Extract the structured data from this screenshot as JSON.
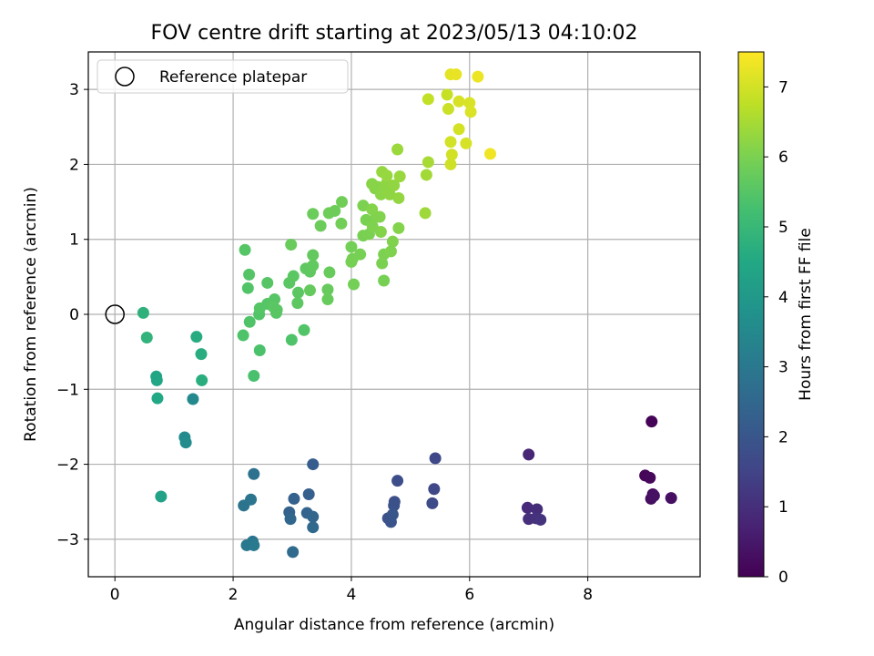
{
  "chart_data": {
    "type": "scatter",
    "title": "FOV centre drift starting at 2023/05/13 04:10:02",
    "xlabel": "Angular distance from reference (arcmin)",
    "ylabel": "Rotation from reference (arcmin)",
    "xlim": [
      -0.45,
      9.9
    ],
    "ylim": [
      -3.5,
      3.5
    ],
    "xticks": [
      0,
      2,
      4,
      6,
      8
    ],
    "yticks": [
      -3,
      -2,
      -1,
      0,
      1,
      2,
      3
    ],
    "grid": true,
    "legend": {
      "placement": "top-left",
      "entries": [
        "Reference platepar"
      ]
    },
    "reference_point": {
      "x": 0,
      "y": 0
    },
    "colorbar": {
      "label": "Hours from first FF file",
      "range": [
        0,
        7.5
      ],
      "ticks": [
        0,
        1,
        2,
        3,
        4,
        5,
        6,
        7
      ],
      "colormap": "viridis"
    },
    "points": [
      [
        9.08,
        -1.43,
        0.05
      ],
      [
        8.97,
        -2.15,
        0.1
      ],
      [
        9.05,
        -2.18,
        0.15
      ],
      [
        9.1,
        -2.4,
        0.2
      ],
      [
        9.07,
        -2.46,
        0.25
      ],
      [
        9.41,
        -2.45,
        0.3
      ],
      [
        9.12,
        -2.42,
        0.35
      ],
      [
        7.0,
        -1.87,
        0.8
      ],
      [
        6.98,
        -2.58,
        0.9
      ],
      [
        7.14,
        -2.6,
        0.95
      ],
      [
        7.0,
        -2.73,
        1.0
      ],
      [
        7.12,
        -2.72,
        1.05
      ],
      [
        7.2,
        -2.74,
        1.1
      ],
      [
        5.42,
        -1.92,
        1.6
      ],
      [
        5.4,
        -2.33,
        1.65
      ],
      [
        5.37,
        -2.52,
        1.7
      ],
      [
        4.78,
        -2.22,
        1.75
      ],
      [
        4.73,
        -2.5,
        1.8
      ],
      [
        4.72,
        -2.55,
        1.85
      ],
      [
        4.62,
        -2.72,
        1.9
      ],
      [
        4.67,
        -2.77,
        1.95
      ],
      [
        4.7,
        -2.67,
        2.0
      ],
      [
        3.35,
        -2.0,
        2.2
      ],
      [
        3.28,
        -2.4,
        2.25
      ],
      [
        3.03,
        -2.46,
        2.3
      ],
      [
        2.95,
        -2.64,
        2.35
      ],
      [
        3.25,
        -2.65,
        2.4
      ],
      [
        3.35,
        -2.7,
        2.45
      ],
      [
        2.97,
        -2.73,
        2.5
      ],
      [
        3.35,
        -2.84,
        2.55
      ],
      [
        3.01,
        -3.17,
        2.6
      ],
      [
        2.35,
        -2.13,
        2.8
      ],
      [
        2.18,
        -2.55,
        2.85
      ],
      [
        2.3,
        -2.47,
        2.9
      ],
      [
        2.33,
        -3.03,
        2.95
      ],
      [
        2.23,
        -3.08,
        3.0
      ],
      [
        2.35,
        -3.08,
        3.05
      ],
      [
        1.32,
        -1.13,
        3.5
      ],
      [
        1.18,
        -1.64,
        3.55
      ],
      [
        1.2,
        -1.71,
        3.6
      ],
      [
        0.78,
        -2.43,
        4.3
      ],
      [
        0.7,
        -0.83,
        4.4
      ],
      [
        0.71,
        -0.88,
        4.45
      ],
      [
        0.72,
        -1.12,
        4.5
      ],
      [
        1.38,
        -0.3,
        4.6
      ],
      [
        1.46,
        -0.53,
        4.65
      ],
      [
        1.47,
        -0.88,
        4.7
      ],
      [
        0.48,
        0.02,
        4.8
      ],
      [
        0.54,
        -0.31,
        4.85
      ],
      [
        2.35,
        -0.82,
        5.3
      ],
      [
        2.45,
        -0.48,
        5.35
      ],
      [
        2.17,
        -0.28,
        5.4
      ],
      [
        2.28,
        -0.1,
        5.42
      ],
      [
        2.44,
        0.0,
        5.45
      ],
      [
        2.45,
        0.08,
        5.48
      ],
      [
        2.58,
        0.14,
        5.5
      ],
      [
        2.7,
        0.2,
        5.52
      ],
      [
        2.73,
        0.02,
        5.54
      ],
      [
        2.68,
        0.1,
        5.55
      ],
      [
        2.74,
        0.06,
        5.56
      ],
      [
        2.25,
        0.35,
        5.45
      ],
      [
        2.27,
        0.53,
        5.47
      ],
      [
        2.2,
        0.86,
        5.5
      ],
      [
        2.58,
        0.42,
        5.52
      ],
      [
        2.95,
        0.42,
        5.55
      ],
      [
        3.02,
        0.51,
        5.57
      ],
      [
        3.1,
        0.29,
        5.58
      ],
      [
        3.09,
        0.15,
        5.6
      ],
      [
        3.23,
        0.61,
        5.62
      ],
      [
        3.3,
        0.57,
        5.64
      ],
      [
        3.35,
        0.65,
        5.66
      ],
      [
        3.35,
        0.79,
        5.68
      ],
      [
        3.3,
        0.32,
        5.7
      ],
      [
        3.6,
        0.33,
        5.72
      ],
      [
        3.6,
        0.2,
        5.73
      ],
      [
        3.63,
        0.56,
        5.74
      ],
      [
        2.99,
        -0.34,
        5.4
      ],
      [
        3.2,
        -0.21,
        5.45
      ],
      [
        2.98,
        0.93,
        5.75
      ],
      [
        3.35,
        1.34,
        5.78
      ],
      [
        3.48,
        1.18,
        5.8
      ],
      [
        3.62,
        1.35,
        5.82
      ],
      [
        3.72,
        1.38,
        5.84
      ],
      [
        3.84,
        1.5,
        5.86
      ],
      [
        3.83,
        1.21,
        5.88
      ],
      [
        4.0,
        0.9,
        5.9
      ],
      [
        4.02,
        0.74,
        5.92
      ],
      [
        4.0,
        0.7,
        5.94
      ],
      [
        4.04,
        0.4,
        5.9
      ],
      [
        4.15,
        0.8,
        5.95
      ],
      [
        4.2,
        1.05,
        5.97
      ],
      [
        4.25,
        1.26,
        5.99
      ],
      [
        4.3,
        1.07,
        6.0
      ],
      [
        4.2,
        1.45,
        6.02
      ],
      [
        4.36,
        1.17,
        6.04
      ],
      [
        4.42,
        1.3,
        6.06
      ],
      [
        4.48,
        1.3,
        6.08
      ],
      [
        4.5,
        1.1,
        6.1
      ],
      [
        4.52,
        0.68,
        6.0
      ],
      [
        4.55,
        0.8,
        6.02
      ],
      [
        4.55,
        0.45,
        5.95
      ],
      [
        4.67,
        0.84,
        6.05
      ],
      [
        4.7,
        0.97,
        6.07
      ],
      [
        4.8,
        1.15,
        6.1
      ],
      [
        4.35,
        1.4,
        6.1
      ],
      [
        4.4,
        1.68,
        6.12
      ],
      [
        4.35,
        1.74,
        6.14
      ],
      [
        4.45,
        1.7,
        6.16
      ],
      [
        4.5,
        1.6,
        6.18
      ],
      [
        4.55,
        1.65,
        6.2
      ],
      [
        4.6,
        1.75,
        6.22
      ],
      [
        4.65,
        1.6,
        6.24
      ],
      [
        4.72,
        1.72,
        6.26
      ],
      [
        4.8,
        1.55,
        6.28
      ],
      [
        4.52,
        1.9,
        6.3
      ],
      [
        4.6,
        1.85,
        6.32
      ],
      [
        4.82,
        1.84,
        6.34
      ],
      [
        4.78,
        2.2,
        6.36
      ],
      [
        5.25,
        1.35,
        6.4
      ],
      [
        5.27,
        1.86,
        6.45
      ],
      [
        5.3,
        2.03,
        6.5
      ],
      [
        5.3,
        2.87,
        6.8
      ],
      [
        5.62,
        2.93,
        6.85
      ],
      [
        5.64,
        2.74,
        6.9
      ],
      [
        5.68,
        2.0,
        6.95
      ],
      [
        5.7,
        2.13,
        6.98
      ],
      [
        5.68,
        2.3,
        7.0
      ],
      [
        5.82,
        2.47,
        7.02
      ],
      [
        5.94,
        2.28,
        7.04
      ],
      [
        5.82,
        2.84,
        7.06
      ],
      [
        6.0,
        2.82,
        7.08
      ],
      [
        6.02,
        2.7,
        7.1
      ],
      [
        5.68,
        3.2,
        7.2
      ],
      [
        5.77,
        3.2,
        7.25
      ],
      [
        6.14,
        3.17,
        7.3
      ],
      [
        6.35,
        2.14,
        7.35
      ]
    ]
  }
}
